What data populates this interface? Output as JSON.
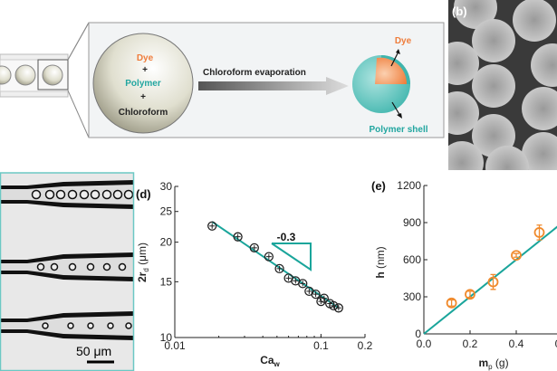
{
  "panel_a": {
    "droplet_labels": {
      "dye": "Dye",
      "plus1": "+",
      "polymer": "Polymer",
      "plus2": "+",
      "chloroform": "Chloroform"
    },
    "arrow_label": "Chloroform evaporation",
    "product_labels": {
      "dye": "Dye",
      "shell": "Polymer shell"
    },
    "colors": {
      "dye": "#ef7d3c",
      "polymer": "#22a6a0",
      "frame": "#f2f4f5"
    }
  },
  "panel_b": {
    "label": "(b)"
  },
  "panel_c": {
    "scale_bar": "50 μm"
  },
  "chart_data": [
    {
      "panel": "(d)",
      "type": "scatter",
      "xlabel": "Ca",
      "xlabel_sub": "w",
      "ylabel": "2r",
      "ylabel_sub": "d",
      "ylabel_unit": " (μm)",
      "xscale": "log",
      "yscale": "log",
      "xlim": [
        0.01,
        0.2
      ],
      "ylim": [
        10,
        30
      ],
      "xticks": [
        "0.01",
        "0.1",
        "0.2"
      ],
      "yticks": [
        "10",
        "15",
        "20",
        "25",
        "30"
      ],
      "slope_label": "-0.3",
      "x": [
        0.018,
        0.027,
        0.035,
        0.044,
        0.052,
        0.06,
        0.067,
        0.075,
        0.083,
        0.092,
        0.1,
        0.105,
        0.115,
        0.122,
        0.132
      ],
      "y": [
        22.5,
        20.8,
        19.2,
        18.0,
        16.5,
        15.4,
        15.1,
        14.8,
        14.0,
        13.7,
        13.0,
        13.3,
        12.8,
        12.6,
        12.4
      ],
      "fit": {
        "slope": -0.3,
        "x": [
          0.018,
          0.132
        ],
        "y": [
          23.2,
          12.4
        ]
      },
      "marker_color": "#222222",
      "fit_color": "#1aa59b"
    },
    {
      "panel": "(e)",
      "type": "scatter",
      "xlabel": "m",
      "xlabel_sub": "p",
      "xlabel_unit": " (g)",
      "ylabel": "h",
      "ylabel_unit": " (nm)",
      "xlim": [
        0,
        0.6
      ],
      "ylim": [
        0,
        1200
      ],
      "xticks": [
        "0.0",
        "0.2",
        "0.4",
        "0.6"
      ],
      "yticks": [
        "0",
        "300",
        "600",
        "900",
        "1200"
      ],
      "x": [
        0.12,
        0.2,
        0.3,
        0.4,
        0.5
      ],
      "y": [
        250,
        320,
        420,
        635,
        820
      ],
      "yerr": [
        25,
        25,
        60,
        15,
        60
      ],
      "fit": {
        "x": [
          0,
          0.6
        ],
        "y": [
          0,
          900
        ]
      },
      "marker_color": "#f08a2c",
      "fit_color": "#1aa59b"
    }
  ]
}
